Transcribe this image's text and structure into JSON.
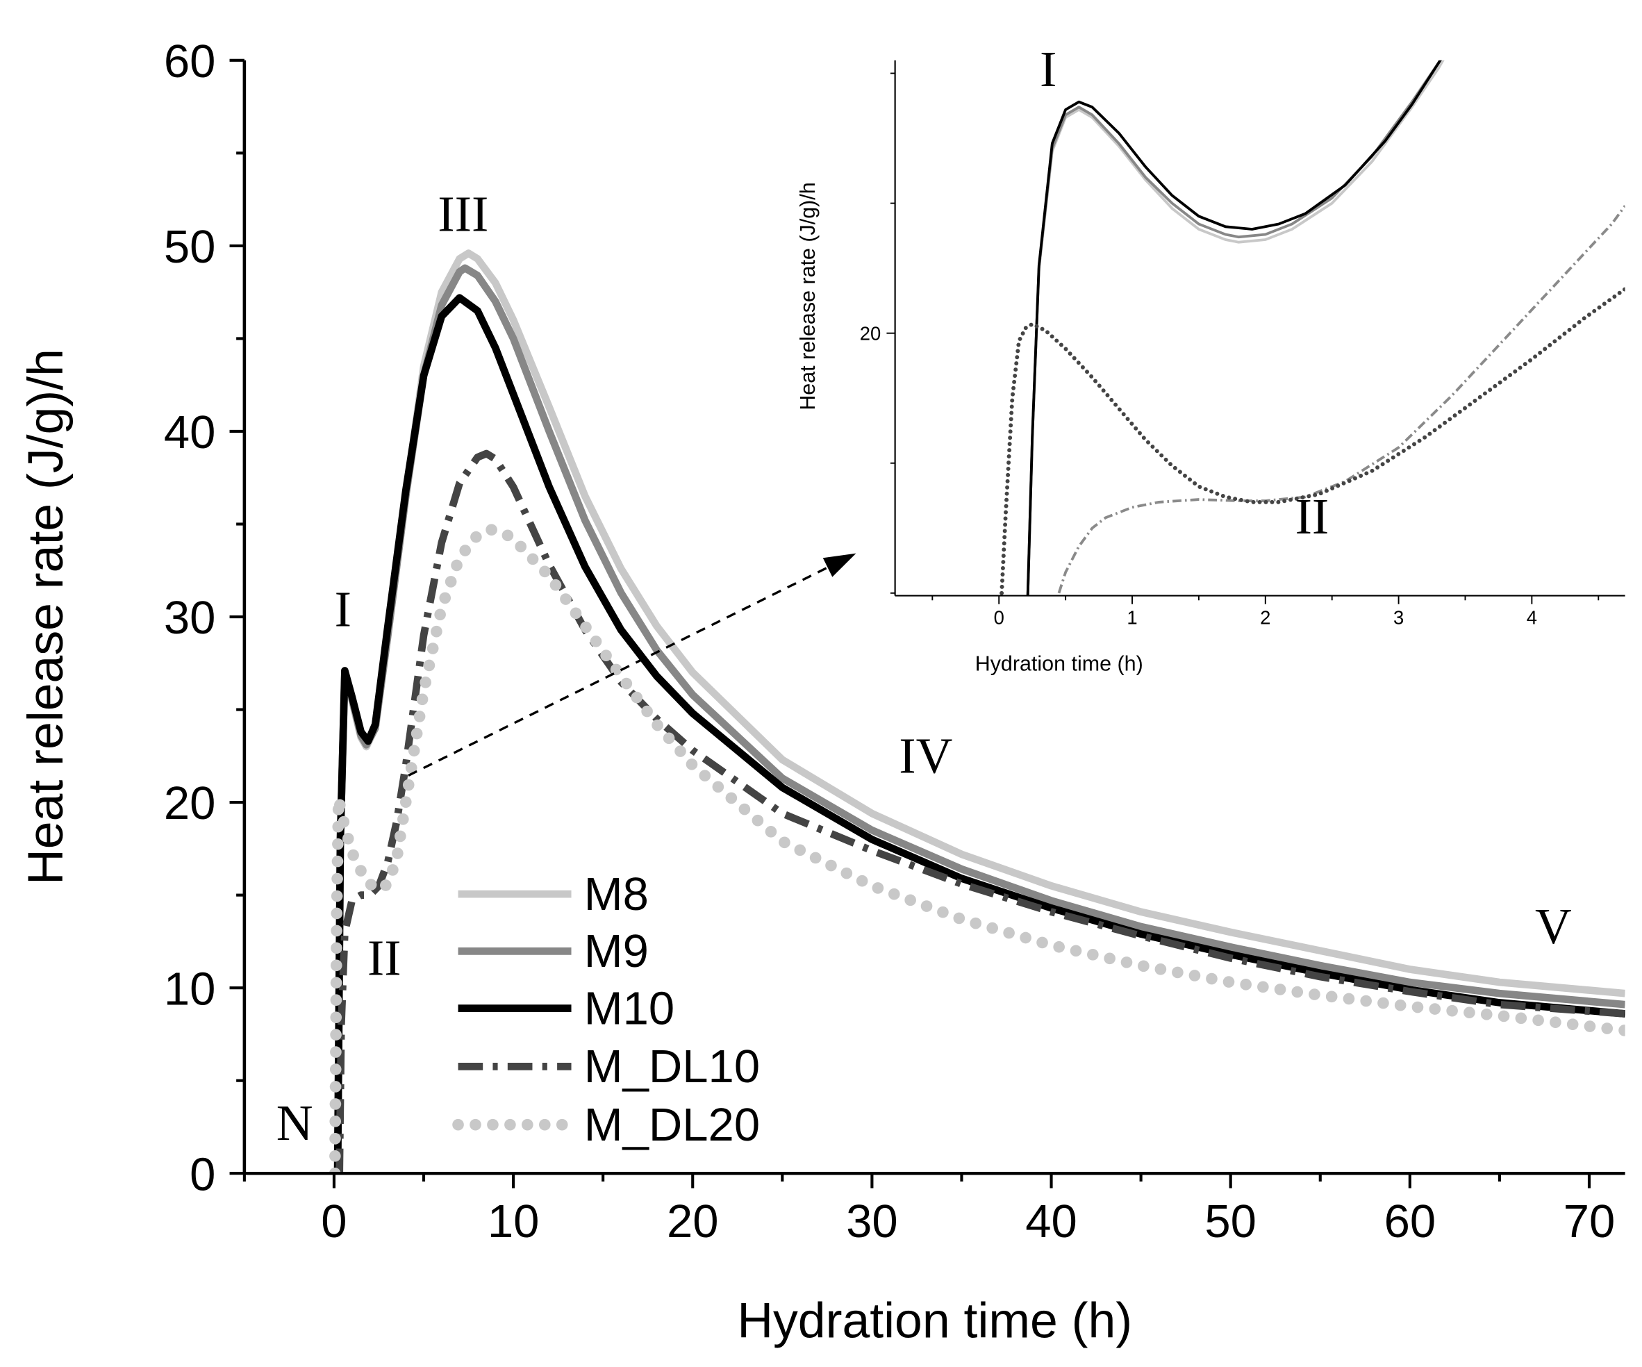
{
  "chart_data": [
    {
      "id": "main",
      "type": "line",
      "title": "",
      "xlabel": "Hydration time (h)",
      "ylabel": "Heat release rate (J/g)/h",
      "xlim": [
        -5,
        72
      ],
      "ylim": [
        0,
        60
      ],
      "xticks": [
        0,
        10,
        20,
        30,
        40,
        50,
        60,
        70
      ],
      "yticks": [
        0,
        10,
        20,
        30,
        40,
        50,
        60
      ],
      "grid": false,
      "legend_position": "lower-center",
      "series": [
        {
          "name": "M8",
          "style": "solid-light",
          "x": [
            0.2,
            0.35,
            0.6,
            1.0,
            1.5,
            1.8,
            2.3,
            3.0,
            4.0,
            5.0,
            6.0,
            7.0,
            7.5,
            8.0,
            9.0,
            10.0,
            12.0,
            14.0,
            16.0,
            18.0,
            20.0,
            25.0,
            30.0,
            35.0,
            40.0,
            45.0,
            50.0,
            55.0,
            60.0,
            65.0,
            72.0
          ],
          "values": [
            0,
            18,
            26.8,
            25.5,
            23.5,
            23.0,
            24.0,
            29.0,
            36.5,
            43.5,
            47.5,
            49.3,
            49.6,
            49.3,
            48.0,
            46.0,
            41.3,
            36.5,
            32.6,
            29.5,
            27.0,
            22.3,
            19.4,
            17.2,
            15.5,
            14.1,
            13.0,
            12.0,
            11.0,
            10.3,
            9.7
          ]
        },
        {
          "name": "M9",
          "style": "solid-medium",
          "x": [
            0.2,
            0.35,
            0.6,
            1.0,
            1.5,
            1.8,
            2.3,
            3.0,
            4.0,
            5.0,
            6.0,
            7.0,
            7.3,
            8.0,
            9.0,
            10.0,
            12.0,
            14.0,
            16.0,
            18.0,
            20.0,
            25.0,
            30.0,
            35.0,
            40.0,
            45.0,
            50.0,
            55.0,
            60.0,
            65.0,
            72.0
          ],
          "values": [
            0,
            18,
            26.9,
            25.6,
            23.6,
            23.1,
            24.0,
            29.0,
            36.5,
            43.0,
            46.8,
            48.6,
            48.8,
            48.4,
            47.0,
            45.0,
            40.0,
            35.2,
            31.3,
            28.2,
            25.8,
            21.3,
            18.5,
            16.4,
            14.7,
            13.3,
            12.2,
            11.2,
            10.3,
            9.7,
            9.1
          ]
        },
        {
          "name": "M10",
          "style": "solid-dark",
          "x": [
            0.2,
            0.35,
            0.6,
            1.0,
            1.5,
            1.9,
            2.3,
            3.0,
            4.0,
            5.0,
            6.0,
            7.0,
            8.0,
            9.0,
            10.0,
            12.0,
            14.0,
            16.0,
            18.0,
            20.0,
            25.0,
            30.0,
            35.0,
            40.0,
            45.0,
            50.0,
            55.0,
            60.0,
            65.0,
            72.0
          ],
          "values": [
            0,
            18,
            27.1,
            25.7,
            23.8,
            23.3,
            24.2,
            29.5,
            36.8,
            43.0,
            46.2,
            47.2,
            46.5,
            44.5,
            42.0,
            37.0,
            32.7,
            29.3,
            26.8,
            24.8,
            20.8,
            18.0,
            15.9,
            14.3,
            12.9,
            11.8,
            10.8,
            9.9,
            9.2,
            8.6
          ]
        },
        {
          "name": "M_DL10",
          "style": "dash-dot",
          "x": [
            0.3,
            0.4,
            0.6,
            1.0,
            1.5,
            2.0,
            2.5,
            3.0,
            3.5,
            4.0,
            4.5,
            5.0,
            6.0,
            7.0,
            8.0,
            8.5,
            9.0,
            10.0,
            12.0,
            14.0,
            16.0,
            18.0,
            20.0,
            25.0,
            30.0,
            35.0,
            40.0,
            45.0,
            50.0,
            55.0,
            60.0,
            65.0,
            72.0
          ],
          "values": [
            0,
            8,
            13,
            14.7,
            15.0,
            15.0,
            15.5,
            16.8,
            19.0,
            22.0,
            25.5,
            29.0,
            34.0,
            37.2,
            38.6,
            38.8,
            38.5,
            37.0,
            32.8,
            29.3,
            26.5,
            24.5,
            22.8,
            19.4,
            17.4,
            15.6,
            14.1,
            12.8,
            11.6,
            10.6,
            9.8,
            9.1,
            8.6
          ]
        },
        {
          "name": "M_DL20",
          "style": "dotted",
          "x": [
            0.05,
            0.15,
            0.25,
            0.4,
            0.6,
            1.0,
            1.5,
            2.0,
            2.5,
            3.0,
            3.5,
            4.0,
            5.0,
            6.0,
            7.0,
            8.0,
            8.8,
            9.5,
            10.0,
            12.0,
            14.0,
            16.0,
            18.0,
            20.0,
            25.0,
            30.0,
            35.0,
            40.0,
            45.0,
            50.0,
            55.0,
            60.0,
            65.0,
            72.0
          ],
          "values": [
            0,
            14,
            20.2,
            19.5,
            18.7,
            17.3,
            16.3,
            15.6,
            15.3,
            15.6,
            17.0,
            20.0,
            26.0,
            30.5,
            33.2,
            34.4,
            34.7,
            34.5,
            34.2,
            32.2,
            29.5,
            26.8,
            24.2,
            22.0,
            17.9,
            15.5,
            13.7,
            12.3,
            11.2,
            10.3,
            9.6,
            9.0,
            8.5,
            7.7
          ]
        }
      ],
      "annotations": [
        {
          "text": "N",
          "x": -2.2,
          "y": 1.8
        },
        {
          "text": "I",
          "x": 0.5,
          "y": 29.5
        },
        {
          "text": "II",
          "x": 2.8,
          "y": 10.7
        },
        {
          "text": "III",
          "x": 7.2,
          "y": 50.8
        },
        {
          "text": "IV",
          "x": 33.0,
          "y": 21.6
        },
        {
          "text": "V",
          "x": 68.0,
          "y": 12.4
        }
      ]
    },
    {
      "id": "inset",
      "type": "line",
      "title": "",
      "xlabel": "Hydration time (h)",
      "ylabel": "Heat release rate (J/g)/h",
      "xlim": [
        -0.78,
        4.7
      ],
      "ylim": [
        9.9,
        30.5
      ],
      "xticks": [
        0,
        1,
        2,
        3,
        4
      ],
      "yticks": [
        20
      ],
      "grid": false,
      "series": [
        {
          "name": "M8",
          "style": "solid-light",
          "x": [
            0.2,
            0.25,
            0.3,
            0.4,
            0.5,
            0.6,
            0.7,
            0.9,
            1.1,
            1.3,
            1.5,
            1.7,
            1.8,
            2.0,
            2.2,
            2.5,
            2.8,
            3.1,
            3.3,
            3.5
          ],
          "values": [
            7,
            16,
            22.5,
            27.0,
            28.3,
            28.6,
            28.3,
            27.2,
            25.9,
            24.8,
            24.0,
            23.6,
            23.5,
            23.6,
            24.0,
            25.0,
            26.6,
            28.7,
            30.2,
            32.0
          ]
        },
        {
          "name": "M9",
          "style": "solid-medium",
          "x": [
            0.2,
            0.25,
            0.3,
            0.4,
            0.5,
            0.6,
            0.7,
            0.9,
            1.1,
            1.3,
            1.5,
            1.7,
            1.8,
            2.0,
            2.2,
            2.5,
            2.8,
            3.1,
            3.3,
            3.5
          ],
          "values": [
            7,
            16,
            22.5,
            27.1,
            28.4,
            28.7,
            28.4,
            27.3,
            26.0,
            25.0,
            24.2,
            23.8,
            23.7,
            23.8,
            24.2,
            25.2,
            26.8,
            28.9,
            30.4,
            32.0
          ]
        },
        {
          "name": "M10",
          "style": "solid-dark",
          "x": [
            0.2,
            0.25,
            0.3,
            0.4,
            0.5,
            0.6,
            0.7,
            0.9,
            1.1,
            1.3,
            1.5,
            1.7,
            1.9,
            2.1,
            2.3,
            2.6,
            2.9,
            3.1,
            3.3,
            3.5
          ],
          "values": [
            7,
            16,
            22.6,
            27.3,
            28.6,
            28.9,
            28.7,
            27.7,
            26.4,
            25.3,
            24.5,
            24.1,
            24.0,
            24.2,
            24.6,
            25.7,
            27.4,
            28.8,
            30.4,
            32.0
          ]
        },
        {
          "name": "M_DL10",
          "style": "dash-dot",
          "x": [
            0.45,
            0.5,
            0.6,
            0.7,
            0.8,
            1.0,
            1.2,
            1.5,
            1.8,
            2.0,
            2.3,
            2.6,
            3.0,
            3.4,
            3.8,
            4.2,
            4.6,
            4.7
          ],
          "values": [
            10,
            10.8,
            11.8,
            12.5,
            12.9,
            13.3,
            13.5,
            13.6,
            13.55,
            13.55,
            13.7,
            14.3,
            15.6,
            17.6,
            19.8,
            22.0,
            24.2,
            24.9
          ]
        },
        {
          "name": "M_DL20",
          "style": "dotted",
          "x": [
            0.02,
            0.05,
            0.1,
            0.15,
            0.2,
            0.25,
            0.35,
            0.5,
            0.7,
            0.9,
            1.1,
            1.3,
            1.5,
            1.7,
            1.9,
            2.1,
            2.4,
            2.8,
            3.2,
            3.6,
            4.0,
            4.4,
            4.7
          ],
          "values": [
            10,
            13,
            17.5,
            19.7,
            20.2,
            20.35,
            20.1,
            19.4,
            18.3,
            17.1,
            15.9,
            14.9,
            14.1,
            13.7,
            13.5,
            13.5,
            13.8,
            14.7,
            16.0,
            17.5,
            19.0,
            20.6,
            21.7
          ]
        }
      ],
      "annotations": [
        {
          "text": "I",
          "x": 0.37,
          "y": 29.5
        },
        {
          "text": "II",
          "x": 2.35,
          "y": 12.3
        }
      ]
    }
  ],
  "colors": {
    "M8": "#c8c8c8",
    "M9": "#878787",
    "M10": "#000000",
    "M_DL10": "#444444",
    "M_DL20": "#c8c8c8",
    "inset_M_DL10": "#8a8a8a",
    "inset_M_DL20": "#444444",
    "axis": "#000000"
  }
}
